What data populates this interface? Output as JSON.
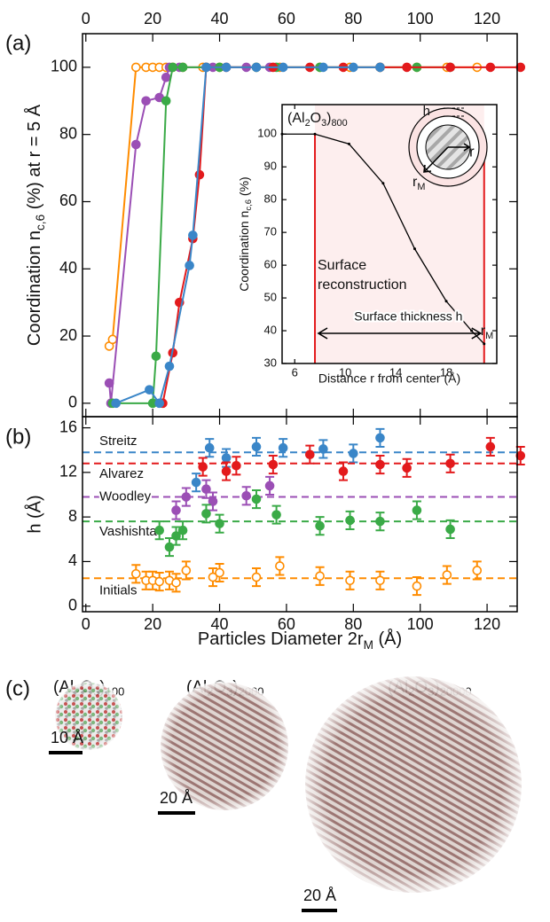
{
  "figure": {
    "panel_labels": [
      "(a)",
      "(b)",
      "(c)"
    ]
  },
  "chart_data": [
    {
      "type": "line",
      "y_label": [
        "Coordination n",
        "c,6",
        " (%) at r = 5 Å"
      ],
      "xlim": [
        -1,
        129
      ],
      "xticks": [
        0,
        20,
        40,
        60,
        80,
        100,
        120
      ],
      "ylim": [
        -4,
        110
      ],
      "yticks": [
        0,
        20,
        40,
        60,
        80,
        100
      ],
      "series": [
        {
          "color": "#ff8c00",
          "marker": "open",
          "x": [
            7,
            8,
            15,
            18,
            20,
            22,
            24,
            26,
            29,
            35,
            40,
            51,
            58,
            70,
            79,
            88,
            99,
            108,
            117
          ],
          "values": [
            17,
            19,
            100,
            100,
            100,
            100,
            100,
            100,
            100,
            100,
            100,
            100,
            100,
            100,
            100,
            100,
            100,
            100,
            100
          ]
        },
        {
          "color": "#9b4fb5",
          "marker": "filled",
          "x": [
            7,
            7.5,
            15,
            18,
            22,
            24,
            25,
            28,
            38,
            48,
            55
          ],
          "values": [
            6,
            0,
            77,
            90,
            91,
            97,
            100,
            100,
            100,
            100,
            100
          ]
        },
        {
          "color": "#3aaa47",
          "marker": "filled",
          "x": [
            8,
            20,
            21,
            24,
            26,
            29,
            36,
            40,
            51,
            57,
            70,
            88,
            99,
            109
          ],
          "values": [
            0,
            0,
            14,
            90,
            100,
            100,
            100,
            100,
            100,
            100,
            100,
            100,
            100,
            100
          ]
        },
        {
          "color": "#e31a1c",
          "marker": "filled",
          "x": [
            23,
            26,
            28,
            32,
            34,
            36,
            42,
            56,
            67,
            77,
            88,
            96,
            109,
            121,
            130
          ],
          "values": [
            0,
            15,
            30,
            49,
            68,
            100,
            100,
            100,
            100,
            100,
            100,
            100,
            100,
            100,
            100
          ]
        },
        {
          "color": "#3a86c8",
          "marker": "filled",
          "x": [
            9,
            19,
            22,
            25,
            31,
            32,
            36,
            42,
            51,
            59,
            71,
            80,
            88
          ],
          "values": [
            0,
            4,
            0,
            11,
            41,
            50,
            100,
            100,
            100,
            100,
            100,
            100,
            100
          ]
        }
      ]
    },
    {
      "type": "line",
      "title": [
        "(Al",
        "2",
        "O",
        "3",
        ")",
        "800"
      ],
      "x_label": "Distance r from center (Å)",
      "y_label": [
        "Coordination n",
        "c,6",
        " (%)"
      ],
      "xlim": [
        5,
        22
      ],
      "xticks": [
        6,
        10,
        14,
        18
      ],
      "ylim": [
        30,
        109
      ],
      "yticks": [
        30,
        40,
        50,
        60,
        70,
        80,
        90,
        100
      ],
      "series": [
        {
          "color": "#000000",
          "x": [
            5,
            7.6,
            10.3,
            13,
            15.5,
            18,
            20,
            21
          ],
          "values": [
            100,
            100,
            97,
            85,
            65,
            49,
            40,
            36
          ]
        }
      ],
      "surface_lines": {
        "color": "#e31a1c",
        "x": [
          7.6,
          21
        ]
      },
      "annotations": {
        "reconstruction_1": "Surface",
        "reconstruction_2": "reconstruction",
        "thickness": "Surface thickness h",
        "r_M": [
          "r",
          "M"
        ]
      },
      "schematic": {
        "h": "h",
        "r": "r",
        "r_M": [
          "r",
          "M"
        ]
      }
    },
    {
      "type": "scatter",
      "y_label": "h (Å)",
      "x_label": [
        "Particles Diameter 2r",
        "M",
        " (Å)"
      ],
      "xlim": [
        -1,
        129
      ],
      "xticks": [
        0,
        20,
        40,
        60,
        80,
        100,
        120
      ],
      "ylim": [
        -0.5,
        17
      ],
      "yticks": [
        0,
        4,
        8,
        12,
        16
      ],
      "series": [
        {
          "name": "Streitz",
          "color": "#3a86c8",
          "marker": "filled",
          "mean": 13.8,
          "error": 0.8,
          "x": [
            33,
            37,
            42,
            51,
            59,
            71,
            80,
            88
          ],
          "values": [
            11.1,
            14.2,
            13.3,
            14.3,
            14.2,
            14.1,
            13.7,
            15.1
          ]
        },
        {
          "name": "Alvarez",
          "color": "#e31a1c",
          "marker": "filled",
          "mean": 12.8,
          "error": 0.8,
          "x": [
            35,
            42,
            45,
            56,
            67,
            77,
            88,
            96,
            109,
            121,
            130
          ],
          "values": [
            12.5,
            12.1,
            12.6,
            12.7,
            13.6,
            12.1,
            12.7,
            12.4,
            12.8,
            14.3,
            13.5
          ]
        },
        {
          "name": "Woodley",
          "color": "#9b4fb5",
          "marker": "filled",
          "mean": 9.8,
          "error": 0.8,
          "x": [
            27,
            30,
            36,
            38,
            48,
            55
          ],
          "values": [
            8.6,
            9.8,
            10.5,
            9.4,
            9.9,
            10.8
          ]
        },
        {
          "name": "Vashishta",
          "color": "#3aaa47",
          "marker": "filled",
          "mean": 7.6,
          "error": 0.8,
          "x": [
            22,
            25,
            27,
            29,
            36,
            40,
            51,
            57,
            70,
            79,
            88,
            99,
            109
          ],
          "values": [
            6.8,
            5.3,
            6.3,
            6.8,
            8.3,
            7.4,
            9.6,
            8.2,
            7.2,
            7.7,
            7.6,
            8.6,
            6.9
          ]
        },
        {
          "name": "Initials",
          "color": "#ff8c00",
          "marker": "open",
          "mean": 2.5,
          "error": 0.8,
          "x": [
            15,
            18,
            20,
            22,
            25,
            27,
            30,
            38,
            40,
            51,
            58,
            70,
            79,
            88,
            99,
            108,
            117
          ],
          "values": [
            2.9,
            2.3,
            2.3,
            2.2,
            2.3,
            2.1,
            3.2,
            2.6,
            3.0,
            2.6,
            3.6,
            2.7,
            2.3,
            2.3,
            1.8,
            2.8,
            3.2
          ]
        }
      ]
    }
  ],
  "structures": [
    {
      "label": [
        "(Al",
        "2",
        "O",
        "3",
        ")",
        "100"
      ],
      "scale_bar": "10 Å"
    },
    {
      "label": [
        "(Al",
        "2",
        "O",
        "3",
        ")",
        "2000"
      ],
      "scale_bar": "20 Å"
    },
    {
      "label": [
        "(Al",
        "2",
        "O",
        "3",
        ")",
        "20000"
      ],
      "scale_bar": "20 Å"
    }
  ]
}
